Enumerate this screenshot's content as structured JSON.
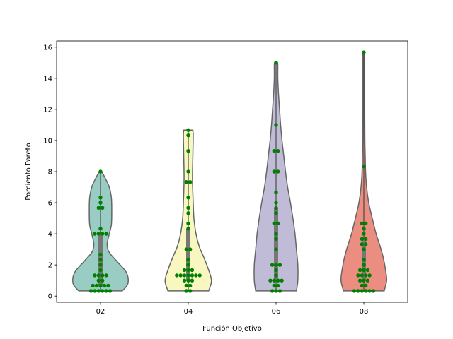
{
  "chart_data": {
    "type": "violin",
    "xlabel": "Función Objetivo",
    "ylabel": "Porciento Pareto",
    "ylim": [
      -0.4,
      16.4
    ],
    "yticks": [
      0,
      2,
      4,
      6,
      8,
      10,
      12,
      14,
      16
    ],
    "categories": [
      "02",
      "04",
      "06",
      "08"
    ],
    "grid": false,
    "series": [
      {
        "category": "02",
        "color": "#99ccc2",
        "min": 0.33,
        "max": 8.0,
        "q1": 0.67,
        "median": 1.67,
        "q3": 4.0,
        "profile": [
          [
            0.33,
            0.62
          ],
          [
            0.8,
            0.78
          ],
          [
            1.5,
            0.74
          ],
          [
            2.2,
            0.48
          ],
          [
            2.8,
            0.25
          ],
          [
            3.3,
            0.19
          ],
          [
            4.0,
            0.25
          ],
          [
            4.6,
            0.31
          ],
          [
            5.5,
            0.32
          ],
          [
            6.3,
            0.31
          ],
          [
            7.0,
            0.25
          ],
          [
            7.6,
            0.13
          ],
          [
            8.0,
            0.03
          ]
        ],
        "points": [
          0.33,
          0.33,
          0.33,
          0.33,
          0.33,
          0.33,
          0.67,
          0.67,
          0.67,
          0.67,
          0.67,
          1.0,
          1.0,
          1.33,
          1.33,
          1.33,
          1.33,
          1.67,
          2.0,
          2.33,
          2.67,
          4.0,
          4.0,
          4.0,
          4.0,
          4.33,
          5.67,
          5.67,
          6.0,
          6.33,
          8.0
        ]
      },
      {
        "category": "04",
        "color": "#f8f7bf",
        "min": 0.33,
        "max": 10.67,
        "q1": 1.0,
        "median": 1.67,
        "q3": 4.33,
        "profile": [
          [
            0.33,
            0.58
          ],
          [
            1.0,
            0.66
          ],
          [
            1.8,
            0.56
          ],
          [
            2.5,
            0.44
          ],
          [
            3.2,
            0.31
          ],
          [
            4.0,
            0.22
          ],
          [
            5.0,
            0.16
          ],
          [
            6.0,
            0.14
          ],
          [
            7.5,
            0.12
          ],
          [
            9.0,
            0.13
          ],
          [
            10.3,
            0.14
          ],
          [
            10.67,
            0.13
          ]
        ],
        "points": [
          0.33,
          0.33,
          0.67,
          0.67,
          1.0,
          1.0,
          1.0,
          1.33,
          1.33,
          1.33,
          1.33,
          1.33,
          1.33,
          1.33,
          1.67,
          1.67,
          1.67,
          2.0,
          2.33,
          3.0,
          3.0,
          4.33,
          4.67,
          5.33,
          5.67,
          6.33,
          7.33,
          7.33,
          8.0,
          9.33,
          10.33,
          10.67
        ]
      },
      {
        "category": "06",
        "color": "#c0bcd8",
        "min": 0.33,
        "max": 15.0,
        "q1": 1.0,
        "median": 3.0,
        "q3": 5.67,
        "profile": [
          [
            0.33,
            0.58
          ],
          [
            1.0,
            0.62
          ],
          [
            2.0,
            0.62
          ],
          [
            3.0,
            0.58
          ],
          [
            4.0,
            0.54
          ],
          [
            5.0,
            0.48
          ],
          [
            6.0,
            0.41
          ],
          [
            7.0,
            0.33
          ],
          [
            8.0,
            0.27
          ],
          [
            9.0,
            0.22
          ],
          [
            10.0,
            0.17
          ],
          [
            11.0,
            0.13
          ],
          [
            12.0,
            0.1
          ],
          [
            13.0,
            0.07
          ],
          [
            14.0,
            0.05
          ],
          [
            14.9,
            0.05
          ],
          [
            15.0,
            0.03
          ]
        ],
        "points": [
          0.33,
          0.33,
          0.33,
          0.67,
          0.67,
          1.0,
          1.0,
          1.0,
          1.0,
          1.33,
          1.67,
          2.0,
          2.0,
          2.0,
          3.0,
          3.67,
          4.0,
          4.67,
          4.67,
          5.33,
          5.67,
          6.0,
          6.67,
          8.0,
          8.0,
          9.33,
          9.33,
          11.0,
          15.0
        ]
      },
      {
        "category": "08",
        "color": "#eb8d81",
        "min": 0.33,
        "max": 15.67,
        "q1": 1.0,
        "median": 1.67,
        "q3": 3.67,
        "profile": [
          [
            0.33,
            0.58
          ],
          [
            1.0,
            0.65
          ],
          [
            1.67,
            0.62
          ],
          [
            2.5,
            0.55
          ],
          [
            3.3,
            0.45
          ],
          [
            4.0,
            0.35
          ],
          [
            5.0,
            0.24
          ],
          [
            6.0,
            0.14
          ],
          [
            7.0,
            0.08
          ],
          [
            8.0,
            0.05
          ],
          [
            9.0,
            0.04
          ],
          [
            10.0,
            0.03
          ],
          [
            12.0,
            0.025
          ],
          [
            14.0,
            0.025
          ],
          [
            15.67,
            0.025
          ]
        ],
        "points": [
          0.33,
          0.33,
          0.33,
          0.33,
          0.33,
          0.33,
          0.67,
          0.67,
          1.0,
          1.0,
          1.0,
          1.33,
          1.33,
          1.33,
          1.33,
          1.67,
          1.67,
          1.67,
          2.0,
          2.33,
          3.0,
          3.33,
          3.33,
          3.67,
          3.67,
          4.0,
          4.33,
          4.67,
          4.67,
          8.33,
          15.67
        ]
      }
    ]
  }
}
